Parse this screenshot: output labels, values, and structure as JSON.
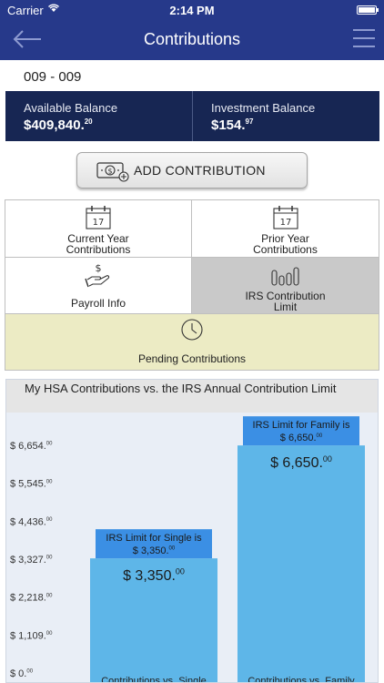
{
  "status": {
    "carrier": "Carrier",
    "time": "2:14 PM"
  },
  "nav": {
    "title": "Contributions"
  },
  "account": {
    "id": "009 - 009"
  },
  "balances": {
    "available_label": "Available Balance",
    "available_main": "$409,840.",
    "available_cents": "20",
    "investment_label": "Investment Balance",
    "investment_main": "$154.",
    "investment_cents": "97"
  },
  "add_button": {
    "label": "ADD CONTRIBUTION"
  },
  "menu": {
    "current_year_date": "17",
    "current_year_l1": "Current Year",
    "current_year_l2": "Contributions",
    "prior_year_date": "17",
    "prior_year_l1": "Prior Year",
    "prior_year_l2": "Contributions",
    "payroll": "Payroll Info",
    "irs_l1": "IRS Contribution",
    "irs_l2": "Limit",
    "pending": "Pending Contributions"
  },
  "colors": {
    "nav": "#26398a",
    "balance_bar": "#172653",
    "bar_light": "#5eb6e8",
    "bar_label": "#3b8fe4",
    "pending_bg": "#ecebc4"
  },
  "chart_data": {
    "type": "bar",
    "title": "My HSA Contributions vs. the IRS Annual Contribution Limit",
    "y_ticks": [
      {
        "main": "$ 0.",
        "cents": "00",
        "value": 0
      },
      {
        "main": "$ 1,109.",
        "cents": "00",
        "value": 1109
      },
      {
        "main": "$ 2,218.",
        "cents": "00",
        "value": 2218
      },
      {
        "main": "$ 3,327.",
        "cents": "00",
        "value": 3327
      },
      {
        "main": "$ 4,436.",
        "cents": "00",
        "value": 4436
      },
      {
        "main": "$ 5,545.",
        "cents": "00",
        "value": 5545
      },
      {
        "main": "$ 6,654.",
        "cents": "00",
        "value": 6654
      }
    ],
    "ylim": [
      0,
      6654
    ],
    "bars": [
      {
        "category": "Contributions vs. Single",
        "value": 3350,
        "value_main": "$ 3,350.",
        "value_cents": "00",
        "limit_l1": "IRS Limit for Single is",
        "limit_l2": "$ 3,350.",
        "limit_cents": "00"
      },
      {
        "category": "Contributions vs. Family",
        "value": 6650,
        "value_main": "$ 6,650.",
        "value_cents": "00",
        "limit_l1": "IRS Limit for Family is",
        "limit_l2": "$ 6,650.",
        "limit_cents": "00"
      }
    ]
  }
}
